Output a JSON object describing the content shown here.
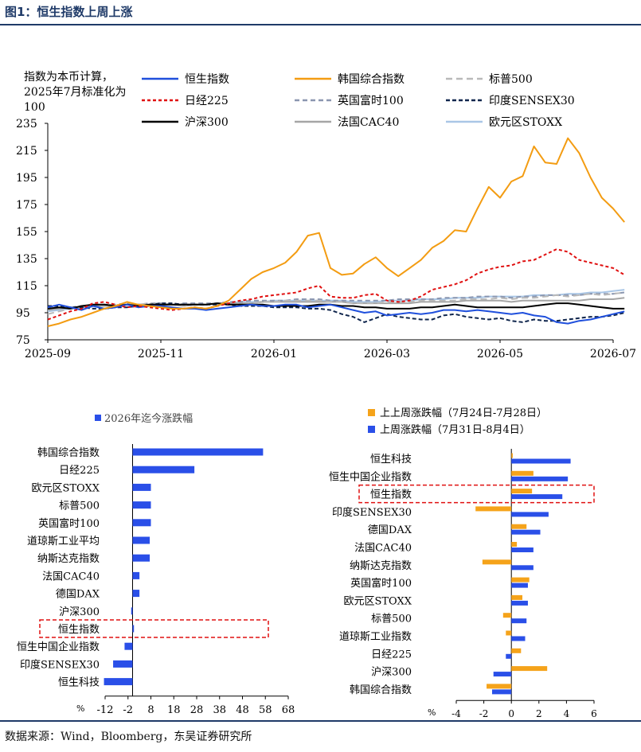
{
  "title": "图1：恒生指数上周上涨",
  "source": "数据来源：Wind，Bloomberg，东吴证券研究所",
  "colors": {
    "hsi": "#1f4fdc",
    "kospi": "#f39c12",
    "sp500": "#b9b9b9",
    "n225": "#e01010",
    "ftse": "#8a96b0",
    "sensex": "#10264d",
    "csi300": "#000000",
    "cac": "#a6a6a6",
    "stoxx": "#a9c6e6",
    "bar_blue": "#2a4fe8",
    "bar_orange": "#f5a31a",
    "highlight": "#e01010"
  },
  "chart_data": [
    {
      "type": "line",
      "ylabel_lines": [
        "指数为本币计算，",
        "2025年7月标准化为",
        "100"
      ],
      "ylim": [
        75,
        235
      ],
      "yticks": [
        "75",
        "95",
        "115",
        "135",
        "155",
        "175",
        "195",
        "215",
        "235"
      ],
      "xticks": [
        "2025-09",
        "2025-11",
        "2026-01",
        "2026-03",
        "2026-05",
        "2026-07"
      ],
      "legend": [
        "恒生指数",
        "韩国综合指数",
        "标普500",
        "日经225",
        "英国富时100",
        "印度SENSEX30",
        "沪深300",
        "法国CAC40",
        "欧元区STOXX"
      ],
      "x": [
        0,
        0.2,
        0.4,
        0.6,
        0.8,
        1,
        1.2,
        1.4,
        1.6,
        1.8,
        2,
        2.2,
        2.4,
        2.6,
        2.8,
        3,
        3.2,
        3.4,
        3.6,
        3.8,
        4,
        4.2,
        4.4,
        4.6,
        4.8,
        5,
        5.2,
        5.4,
        5.6,
        5.8,
        6,
        6.2,
        6.4,
        6.6,
        6.8,
        7,
        7.2,
        7.4,
        7.6,
        7.8,
        8,
        8.2,
        8.4,
        8.6,
        8.8,
        9,
        9.2,
        9.4,
        9.6,
        9.8,
        10,
        10.2
      ],
      "series": [
        {
          "name": "恒生指数",
          "key": "hsi",
          "dash": "",
          "values": [
            99,
            101,
            99,
            97,
            100,
            98,
            99,
            101,
            99,
            100,
            100,
            99,
            98,
            98,
            97,
            98,
            99,
            100,
            101,
            100,
            100,
            101,
            101,
            99,
            100,
            101,
            99,
            97,
            95,
            96,
            93,
            94,
            95,
            94,
            95,
            97,
            97,
            96,
            97,
            96,
            95,
            94,
            95,
            93,
            92,
            88,
            87,
            89,
            90,
            92,
            94,
            96
          ]
        },
        {
          "name": "韩国综合指数",
          "key": "kospi",
          "dash": "",
          "values": [
            85,
            87,
            90,
            92,
            95,
            98,
            100,
            103,
            101,
            100,
            99,
            98,
            98,
            99,
            98,
            100,
            104,
            112,
            120,
            125,
            128,
            132,
            140,
            152,
            154,
            128,
            123,
            124,
            131,
            136,
            128,
            122,
            128,
            134,
            143,
            148,
            156,
            155,
            172,
            188,
            180,
            192,
            196,
            218,
            206,
            205,
            224,
            213,
            195,
            180,
            172,
            162
          ]
        },
        {
          "name": "标普500",
          "key": "sp500",
          "dash": "8,5",
          "values": [
            94,
            96,
            98,
            99,
            100,
            101,
            101,
            102,
            101,
            102,
            101,
            101,
            100,
            101,
            101,
            101,
            102,
            102,
            102,
            103,
            103,
            104,
            104,
            104,
            104,
            103,
            103,
            102,
            102,
            102,
            103,
            103,
            103,
            104,
            104,
            104,
            104,
            105,
            105,
            105,
            106,
            105,
            106,
            106,
            107,
            108,
            107,
            108,
            109,
            108,
            109,
            110
          ]
        },
        {
          "name": "日经225",
          "key": "n225",
          "dash": "4,3",
          "values": [
            90,
            93,
            96,
            98,
            102,
            103,
            101,
            99,
            100,
            99,
            98,
            97,
            98,
            99,
            98,
            100,
            102,
            104,
            105,
            107,
            108,
            109,
            110,
            113,
            115,
            107,
            106,
            106,
            108,
            109,
            104,
            103,
            104,
            107,
            112,
            114,
            116,
            119,
            124,
            127,
            129,
            130,
            133,
            134,
            138,
            142,
            140,
            134,
            132,
            130,
            128,
            123
          ]
        },
        {
          "name": "英国富时100",
          "key": "ftse",
          "dash": "6,4",
          "values": [
            98,
            99,
            99,
            100,
            100,
            101,
            101,
            102,
            101,
            102,
            102,
            101,
            102,
            102,
            102,
            102,
            103,
            103,
            104,
            104,
            104,
            104,
            105,
            105,
            105,
            104,
            104,
            104,
            104,
            104,
            104,
            105,
            105,
            105,
            105,
            106,
            106,
            106,
            107,
            107,
            107,
            106,
            107,
            107,
            108,
            108,
            108,
            108,
            109,
            109,
            109,
            110
          ]
        },
        {
          "name": "印度SENSEX30",
          "key": "sensex",
          "dash": "5,3",
          "values": [
            100,
            100,
            99,
            99,
            98,
            98,
            99,
            99,
            100,
            101,
            102,
            102,
            101,
            101,
            101,
            101,
            101,
            100,
            100,
            100,
            99,
            99,
            99,
            98,
            98,
            97,
            94,
            92,
            88,
            91,
            94,
            92,
            91,
            90,
            90,
            93,
            94,
            92,
            91,
            90,
            91,
            89,
            88,
            90,
            89,
            89,
            90,
            91,
            92,
            92,
            93,
            95
          ]
        },
        {
          "name": "沪深300",
          "key": "csi300",
          "dash": "",
          "values": [
            98,
            99,
            98,
            100,
            101,
            101,
            100,
            101,
            100,
            101,
            101,
            101,
            101,
            101,
            101,
            102,
            101,
            101,
            101,
            101,
            100,
            100,
            100,
            100,
            101,
            101,
            100,
            100,
            99,
            99,
            98,
            98,
            98,
            99,
            99,
            100,
            101,
            100,
            99,
            99,
            99,
            99,
            99,
            100,
            101,
            102,
            102,
            101,
            100,
            99,
            98,
            98
          ]
        },
        {
          "name": "法国CAC40",
          "key": "cac",
          "dash": "",
          "values": [
            97,
            98,
            99,
            99,
            100,
            100,
            100,
            101,
            101,
            101,
            101,
            101,
            100,
            101,
            101,
            102,
            102,
            102,
            102,
            103,
            103,
            103,
            103,
            103,
            103,
            103,
            103,
            102,
            102,
            102,
            102,
            102,
            102,
            103,
            103,
            103,
            103,
            104,
            104,
            104,
            104,
            103,
            104,
            104,
            104,
            104,
            104,
            104,
            105,
            105,
            105,
            106
          ]
        },
        {
          "name": "欧元区STOXX",
          "key": "stoxx",
          "dash": "",
          "values": [
            96,
            97,
            98,
            99,
            100,
            100,
            100,
            101,
            101,
            101,
            101,
            101,
            100,
            101,
            101,
            102,
            102,
            103,
            103,
            103,
            104,
            104,
            104,
            104,
            104,
            104,
            104,
            103,
            103,
            103,
            104,
            104,
            104,
            105,
            105,
            105,
            106,
            106,
            106,
            107,
            107,
            107,
            107,
            108,
            108,
            108,
            109,
            109,
            110,
            110,
            111,
            112
          ]
        }
      ]
    },
    {
      "type": "bar",
      "orientation": "horizontal",
      "legend": "2026年迄今涨跌幅",
      "unit": "%",
      "xlim": [
        -12,
        68
      ],
      "xticks": [
        "-12",
        "-2",
        "8",
        "18",
        "28",
        "38",
        "48",
        "58",
        "68"
      ],
      "categories": [
        "韩国综合指数",
        "日经225",
        "欧元区STOXX",
        "标普500",
        "英国富时100",
        "道琼斯工业平均",
        "纳斯达克指数",
        "法国CAC40",
        "德国DAX",
        "沪深300",
        "恒生指数",
        "恒生中国企业指数",
        "印度SENSEX30",
        "恒生科技"
      ],
      "values": [
        57,
        27,
        8,
        8,
        8,
        7.5,
        7.5,
        3,
        3,
        -0.6,
        0.6,
        -3.5,
        -8.5,
        -12.5
      ],
      "highlight": "恒生指数"
    },
    {
      "type": "bar",
      "orientation": "horizontal",
      "unit": "%",
      "xlim": [
        -4,
        6
      ],
      "xticks": [
        "-4",
        "-2",
        "0",
        "2",
        "4",
        "6"
      ],
      "categories": [
        "恒生科技",
        "恒生中国企业指数",
        "恒生指数",
        "印度SENSEX30",
        "德国DAX",
        "法国CAC40",
        "纳斯达克指数",
        "英国富时100",
        "欧元区STOXX",
        "标普500",
        "道琼斯工业指数",
        "日经225",
        "沪深300",
        "韩国综合指数"
      ],
      "series": [
        {
          "name": "上上周涨跌幅（7月24日-7月28日）",
          "key": "bar_orange",
          "values": [
            0.1,
            1.6,
            1.5,
            -2.6,
            1.1,
            0.4,
            -2.1,
            1.3,
            0.8,
            -0.6,
            -0.4,
            0.7,
            2.6,
            -1.8
          ]
        },
        {
          "name": "上周涨跌幅（7月31日-8月4日）",
          "key": "bar_blue",
          "values": [
            4.3,
            4.1,
            3.7,
            2.7,
            2.1,
            1.6,
            1.6,
            1.2,
            1.2,
            1.1,
            1.0,
            -0.4,
            -1.3,
            -1.4
          ]
        }
      ],
      "highlight": "恒生指数"
    }
  ]
}
